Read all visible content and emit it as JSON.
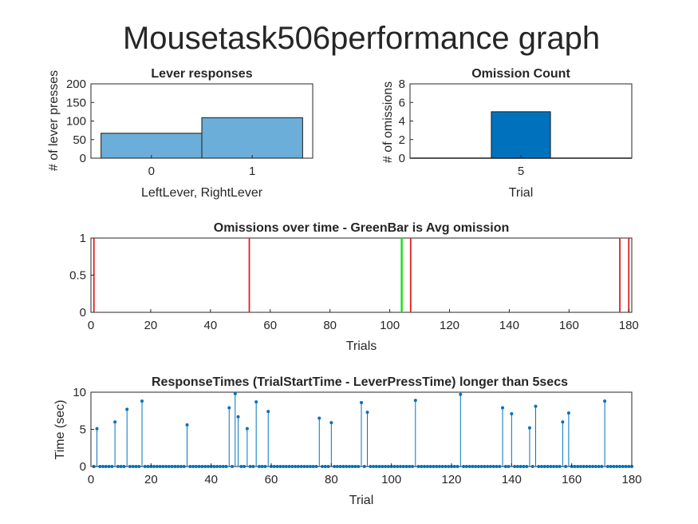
{
  "figure": {
    "suptitle": "Mousetask506performance graph"
  },
  "chart_data": [
    {
      "type": "bar",
      "title": "Lever responses",
      "xlabel": "LeftLever, RightLever",
      "ylabel": "# of lever presses",
      "categories": [
        "0",
        "1"
      ],
      "values": [
        67,
        109
      ],
      "ylim": [
        0,
        200
      ],
      "yticks": [
        "0",
        "50",
        "100",
        "150",
        "200"
      ],
      "bar_color": "#6baed9",
      "grid": false
    },
    {
      "type": "bar",
      "title": "Omission Count",
      "xlabel": "Trial",
      "ylabel": "# of omissions",
      "categories": [
        "5"
      ],
      "values": [
        5
      ],
      "ylim": [
        0,
        8
      ],
      "yticks": [
        "0",
        "2",
        "4",
        "6",
        "8"
      ],
      "bar_color": "#0072bd",
      "grid": false
    },
    {
      "type": "line",
      "title": "Omissions over time - GreenBar is Avg omission",
      "xlabel": "Trials",
      "ylabel": "",
      "xlim": [
        0,
        181
      ],
      "ylim": [
        0,
        1
      ],
      "xticks": [
        "0",
        "20",
        "40",
        "60",
        "80",
        "100",
        "120",
        "140",
        "160",
        "180"
      ],
      "yticks": [
        "0",
        "0.5",
        "1"
      ],
      "omission_trials": [
        1,
        53,
        107,
        177,
        180
      ],
      "avg_omission_trial": 104,
      "omission_color": "#e51e1e",
      "avg_color": "#22dd22",
      "grid": false
    },
    {
      "type": "stem",
      "title": "ResponseTimes (TrialStartTime - LeverPressTime) longer than 5secs",
      "xlabel": "Trial",
      "ylabel": "Time (sec)",
      "xlim": [
        0,
        180
      ],
      "ylim": [
        0,
        10
      ],
      "xticks": [
        "0",
        "20",
        "40",
        "60",
        "80",
        "100",
        "120",
        "140",
        "160",
        "180"
      ],
      "yticks": [
        "0",
        "5",
        "10"
      ],
      "x_range": [
        1,
        180
      ],
      "points": [
        {
          "x": 2,
          "y": 5.1
        },
        {
          "x": 8,
          "y": 6.0
        },
        {
          "x": 12,
          "y": 7.7
        },
        {
          "x": 17,
          "y": 8.8
        },
        {
          "x": 32,
          "y": 5.6
        },
        {
          "x": 46,
          "y": 7.9
        },
        {
          "x": 48,
          "y": 9.8
        },
        {
          "x": 49,
          "y": 6.7
        },
        {
          "x": 52,
          "y": 5.1
        },
        {
          "x": 55,
          "y": 8.7
        },
        {
          "x": 59,
          "y": 7.4
        },
        {
          "x": 76,
          "y": 6.5
        },
        {
          "x": 80,
          "y": 5.9
        },
        {
          "x": 90,
          "y": 8.6
        },
        {
          "x": 92,
          "y": 7.3
        },
        {
          "x": 108,
          "y": 8.9
        },
        {
          "x": 123,
          "y": 9.7
        },
        {
          "x": 137,
          "y": 7.9
        },
        {
          "x": 140,
          "y": 7.1
        },
        {
          "x": 146,
          "y": 5.2
        },
        {
          "x": 148,
          "y": 8.1
        },
        {
          "x": 157,
          "y": 6.0
        },
        {
          "x": 159,
          "y": 7.2
        },
        {
          "x": 171,
          "y": 8.8
        }
      ],
      "color": "#0072bd",
      "grid": false
    }
  ]
}
